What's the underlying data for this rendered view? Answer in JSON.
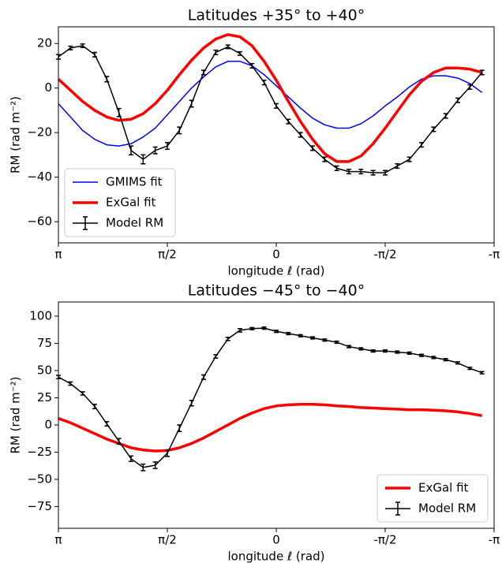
{
  "chart_data": [
    {
      "type": "line",
      "title": "Latitudes +35° to +40°",
      "xlabel": "longitude  ℓ (rad)",
      "ylabel": "RM (rad m⁻²)",
      "xlim": [
        3.1416,
        -3.1416
      ],
      "ylim": [
        -69.5,
        27.5
      ],
      "xticks": [
        {
          "value": 3.1416,
          "label": "π"
        },
        {
          "value": 1.5708,
          "label": "π/2"
        },
        0,
        {
          "value": -1.5708,
          "label": "-π/2"
        },
        {
          "value": -3.1416,
          "label": "-π"
        }
      ],
      "yticks": [
        {
          "value": -60,
          "label": "−60"
        },
        {
          "value": -40,
          "label": "−40"
        },
        {
          "value": -20,
          "label": "−20"
        },
        0,
        20
      ],
      "legend": "lower left",
      "x": [
        3.1416,
        2.9671,
        2.7925,
        2.618,
        2.4435,
        2.2689,
        2.0944,
        1.9199,
        1.7453,
        1.5708,
        1.3963,
        1.2217,
        1.0472,
        0.8727,
        0.6981,
        0.5236,
        0.3491,
        0.1745,
        0,
        -0.1745,
        -0.3491,
        -0.5236,
        -0.6981,
        -0.8727,
        -1.0472,
        -1.2217,
        -1.3963,
        -1.5708,
        -1.7453,
        -1.9199,
        -2.0944,
        -2.2689,
        -2.4435,
        -2.618,
        -2.7925,
        -2.9671
      ],
      "series": [
        {
          "name": "GMIMS fit",
          "color": "#0000ff",
          "linewidth": 1.5,
          "values": [
            -7,
            -13,
            -19,
            -23,
            -25.5,
            -26,
            -25,
            -22,
            -18,
            -12,
            -6,
            0,
            5,
            9.5,
            12,
            12,
            10,
            6,
            1,
            -4,
            -9,
            -13.5,
            -16.5,
            -18,
            -18,
            -16,
            -12.5,
            -8,
            -4,
            0.5,
            4,
            5.5,
            5.5,
            4.5,
            2,
            -2
          ]
        },
        {
          "name": "ExGal fit",
          "color": "#ff0000",
          "linewidth": 3.5,
          "values": [
            4,
            -1,
            -6,
            -10,
            -13,
            -14.5,
            -14,
            -11.5,
            -7,
            -1,
            6,
            12.5,
            18,
            22,
            24,
            23,
            19,
            12,
            3.5,
            -6,
            -15,
            -23,
            -29.5,
            -33,
            -33,
            -30.5,
            -25,
            -18,
            -10.5,
            -3,
            3,
            7,
            9,
            9,
            8.5,
            7
          ]
        },
        {
          "name": "Model RM",
          "color": "#000000",
          "linewidth": 1.5,
          "values": [
            14,
            18,
            19,
            15,
            4,
            -11,
            -28,
            -32,
            -28,
            -26,
            -19,
            -7,
            7,
            16,
            18.5,
            15.5,
            10,
            2.5,
            -8,
            -15,
            -21,
            -27,
            -32,
            -36,
            -37.5,
            -37.5,
            -38,
            -38,
            -35,
            -32,
            -25.5,
            -18.5,
            -12.5,
            -5.5,
            0.5,
            7
          ],
          "errors": [
            1,
            0.8,
            0.8,
            1,
            1.2,
            1.8,
            2,
            2,
            1.5,
            1.5,
            1.5,
            1.5,
            1,
            1,
            0.8,
            0.8,
            1,
            1,
            1,
            1,
            1,
            1,
            1,
            1,
            1,
            1,
            1,
            1,
            1,
            1,
            1,
            1,
            1,
            1,
            1,
            1
          ]
        }
      ]
    },
    {
      "type": "line",
      "title": "Latitudes −45° to −40°",
      "xlabel": "longitude  ℓ (rad)",
      "ylabel": "RM (rad m⁻²)",
      "xlim": [
        3.1416,
        -3.1416
      ],
      "ylim": [
        -95,
        113
      ],
      "xticks": [
        {
          "value": 3.1416,
          "label": "π"
        },
        {
          "value": 1.5708,
          "label": "π/2"
        },
        0,
        {
          "value": -1.5708,
          "label": "-π/2"
        },
        {
          "value": -3.1416,
          "label": "-π"
        }
      ],
      "yticks": [
        {
          "value": -75,
          "label": "−75"
        },
        {
          "value": -50,
          "label": "−50"
        },
        {
          "value": -25,
          "label": "−25"
        },
        0,
        25,
        50,
        75,
        100
      ],
      "legend": "lower right",
      "x": [
        3.1416,
        2.9671,
        2.7925,
        2.618,
        2.4435,
        2.2689,
        2.0944,
        1.9199,
        1.7453,
        1.5708,
        1.3963,
        1.2217,
        1.0472,
        0.8727,
        0.6981,
        0.5236,
        0.3491,
        0.1745,
        0,
        -0.1745,
        -0.3491,
        -0.5236,
        -0.6981,
        -0.8727,
        -1.0472,
        -1.2217,
        -1.3963,
        -1.5708,
        -1.7453,
        -1.9199,
        -2.0944,
        -2.2689,
        -2.4435,
        -2.618,
        -2.7925,
        -2.9671
      ],
      "series": [
        {
          "name": "ExGal fit",
          "color": "#ff0000",
          "linewidth": 3.5,
          "values": [
            6,
            2,
            -3,
            -8,
            -13,
            -17,
            -21,
            -23,
            -24,
            -23.5,
            -21,
            -17,
            -12,
            -6,
            0,
            6,
            11,
            15,
            17.5,
            18.5,
            19,
            19,
            18.5,
            17.5,
            17,
            16,
            15.5,
            15,
            14.5,
            14,
            14,
            13.5,
            13,
            12,
            10.5,
            8.5
          ]
        },
        {
          "name": "Model RM",
          "color": "#000000",
          "linewidth": 1.5,
          "values": [
            44,
            38,
            29,
            17,
            1,
            -15,
            -31,
            -39,
            -37,
            -26,
            -3,
            20,
            44,
            63,
            79,
            87,
            88.5,
            89,
            86,
            84,
            82,
            80,
            78,
            76,
            72,
            70,
            68,
            68,
            67,
            66,
            64,
            62,
            60,
            57,
            52,
            48
          ],
          "errors": [
            1.5,
            1.5,
            1.5,
            2,
            2,
            2.5,
            2.5,
            3,
            3,
            3,
            3,
            2.5,
            2,
            1.5,
            1.5,
            1.5,
            1,
            1,
            1,
            1,
            1,
            1,
            1,
            1,
            1,
            1,
            1,
            1,
            1,
            1,
            1,
            1,
            1,
            1,
            1,
            1
          ]
        }
      ]
    }
  ]
}
